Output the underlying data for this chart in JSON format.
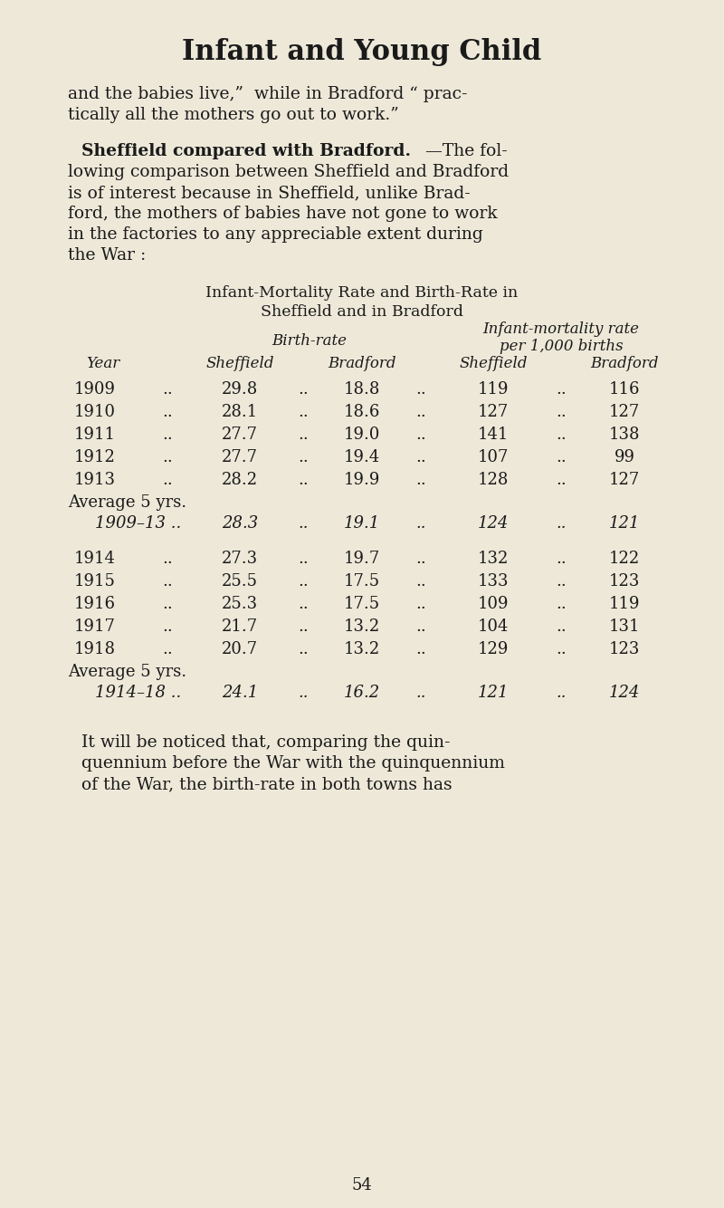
{
  "bg_color": "#ede8d8",
  "text_color": "#1a1a1a",
  "title": "Infant and Young Child",
  "intro_line1": "and the babies live,”  while in Bradford “ prac-",
  "intro_line2": "tically all the mothers go out to work.”",
  "section_bold": "Sheffield compared with Bradford.",
  "section_rest": "—The fol-",
  "section_lines": [
    "lowing comparison between Sheffield and Bradford",
    "is of interest because in Sheffield, unlike Brad-",
    "ford, the mothers of babies have not gone to work",
    "in the factories to any appreciable extent during",
    "the War :"
  ],
  "table_title1": "Infant-Mortality Rate and Birth-Rate in",
  "table_title2": "Sheffield and in Bradford",
  "col_header_br": "Birth-rate",
  "col_header_im1": "Infant-mortality rate",
  "col_header_im2": "per 1,000 births",
  "col_year": "Year",
  "col_shef_br": "Sheffield",
  "col_brad_br": "Bradford",
  "col_shef_im": "Sheffield",
  "col_brad_im": "Bradford",
  "rows1": [
    [
      "1909",
      "29.8",
      "18.8",
      "119",
      "116"
    ],
    [
      "1910",
      "28.1",
      "18.6",
      "127",
      "127"
    ],
    [
      "1911",
      "27.7",
      "19.0",
      "141",
      "138"
    ],
    [
      "1912",
      "27.7",
      "19.4",
      "107",
      "99"
    ],
    [
      "1913",
      "28.2",
      "19.9",
      "128",
      "127"
    ]
  ],
  "avg1_label": "Average 5 yrs.",
  "avg1_year": "1909–13 ..",
  "avg1": [
    "28.3",
    "19.1",
    "124",
    "121"
  ],
  "rows2": [
    [
      "1914",
      "27.3",
      "19.7",
      "132",
      "122"
    ],
    [
      "1915",
      "25.5",
      "17.5",
      "133",
      "123"
    ],
    [
      "1916",
      "25.3",
      "17.5",
      "109",
      "119"
    ],
    [
      "1917",
      "21.7",
      "13.2",
      "104",
      "131"
    ],
    [
      "1918",
      "20.7",
      "13.2",
      "129",
      "123"
    ]
  ],
  "avg2_label": "Average 5 yrs.",
  "avg2_year": "1914–18 ..",
  "avg2": [
    "24.1",
    "16.2",
    "121",
    "124"
  ],
  "footer_lines": [
    "It will be noticed that, comparing the quin-",
    "quennium before the War with the quinquennium",
    "of the War, the birth-rate in both towns has"
  ],
  "page_num": "54"
}
